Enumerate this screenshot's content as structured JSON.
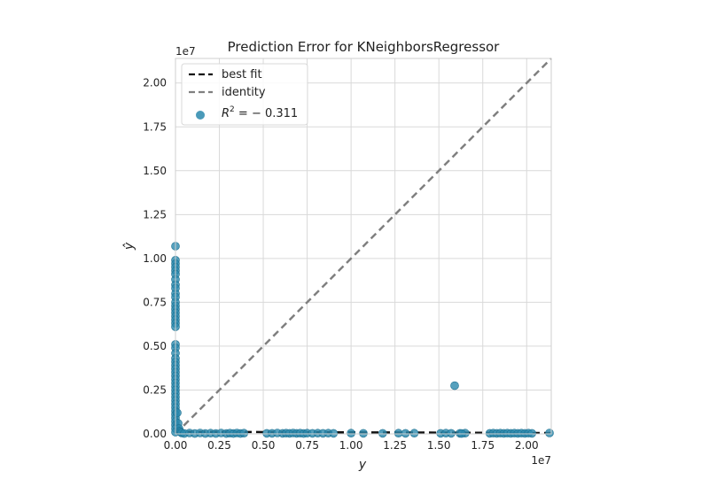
{
  "chart_data": {
    "type": "scatter",
    "title": "Prediction Error for KNeighborsRegressor",
    "xlabel": "y",
    "ylabel": "ŷ",
    "x_offset_label": "1e7",
    "y_offset_label": "1e7",
    "xlim": [
      0,
      21400000
    ],
    "ylim": [
      0,
      21400000
    ],
    "x_ticks": [
      0,
      2500000,
      5000000,
      7500000,
      10000000,
      12500000,
      15000000,
      17500000,
      20000000
    ],
    "x_tick_labels": [
      "0.00",
      "0.25",
      "0.50",
      "0.75",
      "1.00",
      "1.25",
      "1.50",
      "1.75",
      "2.00"
    ],
    "y_ticks": [
      0,
      2500000,
      5000000,
      7500000,
      10000000,
      12500000,
      15000000,
      17500000,
      20000000
    ],
    "y_tick_labels": [
      "0.00",
      "0.25",
      "0.50",
      "0.75",
      "1.00",
      "1.25",
      "1.50",
      "1.75",
      "2.00"
    ],
    "grid": true,
    "legend": {
      "placement": "top-left",
      "entries": [
        {
          "label": "best fit",
          "style": "dashed",
          "color": "#111111"
        },
        {
          "label": "identity",
          "style": "dashed",
          "color": "#808080"
        },
        {
          "label_base": "R",
          "label_sup": "2",
          "label_rest": " = − 0.311",
          "style": "marker",
          "color": "#2a88ad"
        }
      ]
    },
    "best_fit_line": {
      "x": [
        0,
        21400000
      ],
      "y": [
        120000,
        50000
      ]
    },
    "identity_line": {
      "x": [
        0,
        21400000
      ],
      "y": [
        0,
        21400000
      ]
    },
    "point_color": "#2a88ad",
    "points": [
      {
        "x": 0,
        "y": 10700000
      },
      {
        "x": 0,
        "y": 9900000
      },
      {
        "x": 0,
        "y": 9700000
      },
      {
        "x": 0,
        "y": 9500000
      },
      {
        "x": 0,
        "y": 9300000
      },
      {
        "x": 0,
        "y": 9100000
      },
      {
        "x": 0,
        "y": 8800000
      },
      {
        "x": 0,
        "y": 8500000
      },
      {
        "x": 0,
        "y": 8300000
      },
      {
        "x": 0,
        "y": 8000000
      },
      {
        "x": 0,
        "y": 7800000
      },
      {
        "x": 0,
        "y": 7500000
      },
      {
        "x": 0,
        "y": 7300000
      },
      {
        "x": 0,
        "y": 7100000
      },
      {
        "x": 0,
        "y": 6900000
      },
      {
        "x": 0,
        "y": 6700000
      },
      {
        "x": 0,
        "y": 6500000
      },
      {
        "x": 0,
        "y": 6300000
      },
      {
        "x": 0,
        "y": 6100000
      },
      {
        "x": 0,
        "y": 5100000
      },
      {
        "x": 0,
        "y": 4900000
      },
      {
        "x": 0,
        "y": 4600000
      },
      {
        "x": 0,
        "y": 4300000
      },
      {
        "x": 0,
        "y": 4100000
      },
      {
        "x": 0,
        "y": 3900000
      },
      {
        "x": 0,
        "y": 3700000
      },
      {
        "x": 0,
        "y": 3500000
      },
      {
        "x": 0,
        "y": 3300000
      },
      {
        "x": 0,
        "y": 3100000
      },
      {
        "x": 0,
        "y": 2900000
      },
      {
        "x": 0,
        "y": 2700000
      },
      {
        "x": 0,
        "y": 2500000
      },
      {
        "x": 0,
        "y": 2300000
      },
      {
        "x": 0,
        "y": 2100000
      },
      {
        "x": 0,
        "y": 1900000
      },
      {
        "x": 0,
        "y": 1700000
      },
      {
        "x": 0,
        "y": 1500000
      },
      {
        "x": 0,
        "y": 1300000
      },
      {
        "x": 0,
        "y": 1100000
      },
      {
        "x": 0,
        "y": 900000
      },
      {
        "x": 0,
        "y": 700000
      },
      {
        "x": 0,
        "y": 500000
      },
      {
        "x": 0,
        "y": 300000
      },
      {
        "x": 0,
        "y": 100000
      },
      {
        "x": 100000,
        "y": 1200000
      },
      {
        "x": 150000,
        "y": 600000
      },
      {
        "x": 200000,
        "y": 300000
      },
      {
        "x": 250000,
        "y": 150000
      },
      {
        "x": 300000,
        "y": 100000
      },
      {
        "x": 350000,
        "y": 50000
      },
      {
        "x": 500000,
        "y": 20000
      },
      {
        "x": 800000,
        "y": 50000
      },
      {
        "x": 1100000,
        "y": 20000
      },
      {
        "x": 1400000,
        "y": 50000
      },
      {
        "x": 1700000,
        "y": 20000
      },
      {
        "x": 2000000,
        "y": 40000
      },
      {
        "x": 2300000,
        "y": 20000
      },
      {
        "x": 2600000,
        "y": 50000
      },
      {
        "x": 2900000,
        "y": 20000
      },
      {
        "x": 3100000,
        "y": 40000
      },
      {
        "x": 3300000,
        "y": 20000
      },
      {
        "x": 3500000,
        "y": 50000
      },
      {
        "x": 3700000,
        "y": 20000
      },
      {
        "x": 3900000,
        "y": 40000
      },
      {
        "x": 5200000,
        "y": 30000
      },
      {
        "x": 5500000,
        "y": 30000
      },
      {
        "x": 5800000,
        "y": 50000
      },
      {
        "x": 6100000,
        "y": 30000
      },
      {
        "x": 6300000,
        "y": 40000
      },
      {
        "x": 6500000,
        "y": 30000
      },
      {
        "x": 6700000,
        "y": 50000
      },
      {
        "x": 6900000,
        "y": 30000
      },
      {
        "x": 7100000,
        "y": 40000
      },
      {
        "x": 7300000,
        "y": 20000
      },
      {
        "x": 7500000,
        "y": 40000
      },
      {
        "x": 7800000,
        "y": 30000
      },
      {
        "x": 8100000,
        "y": 40000
      },
      {
        "x": 8400000,
        "y": 30000
      },
      {
        "x": 8700000,
        "y": 40000
      },
      {
        "x": 9000000,
        "y": 30000
      },
      {
        "x": 10000000,
        "y": 40000
      },
      {
        "x": 10700000,
        "y": 30000
      },
      {
        "x": 11800000,
        "y": 30000
      },
      {
        "x": 12700000,
        "y": 40000
      },
      {
        "x": 13100000,
        "y": 30000
      },
      {
        "x": 13600000,
        "y": 40000
      },
      {
        "x": 15100000,
        "y": 30000
      },
      {
        "x": 15400000,
        "y": 40000
      },
      {
        "x": 15700000,
        "y": 30000
      },
      {
        "x": 15900000,
        "y": 2750000
      },
      {
        "x": 16200000,
        "y": 30000
      },
      {
        "x": 16500000,
        "y": 40000
      },
      {
        "x": 16300000,
        "y": 20000
      },
      {
        "x": 17900000,
        "y": 30000
      },
      {
        "x": 18100000,
        "y": 40000
      },
      {
        "x": 18300000,
        "y": 30000
      },
      {
        "x": 18500000,
        "y": 40000
      },
      {
        "x": 18700000,
        "y": 30000
      },
      {
        "x": 18900000,
        "y": 40000
      },
      {
        "x": 19100000,
        "y": 30000
      },
      {
        "x": 19300000,
        "y": 40000
      },
      {
        "x": 19500000,
        "y": 30000
      },
      {
        "x": 19700000,
        "y": 40000
      },
      {
        "x": 19900000,
        "y": 30000
      },
      {
        "x": 20100000,
        "y": 40000
      },
      {
        "x": 20300000,
        "y": 30000
      },
      {
        "x": 21300000,
        "y": 50000
      }
    ]
  }
}
